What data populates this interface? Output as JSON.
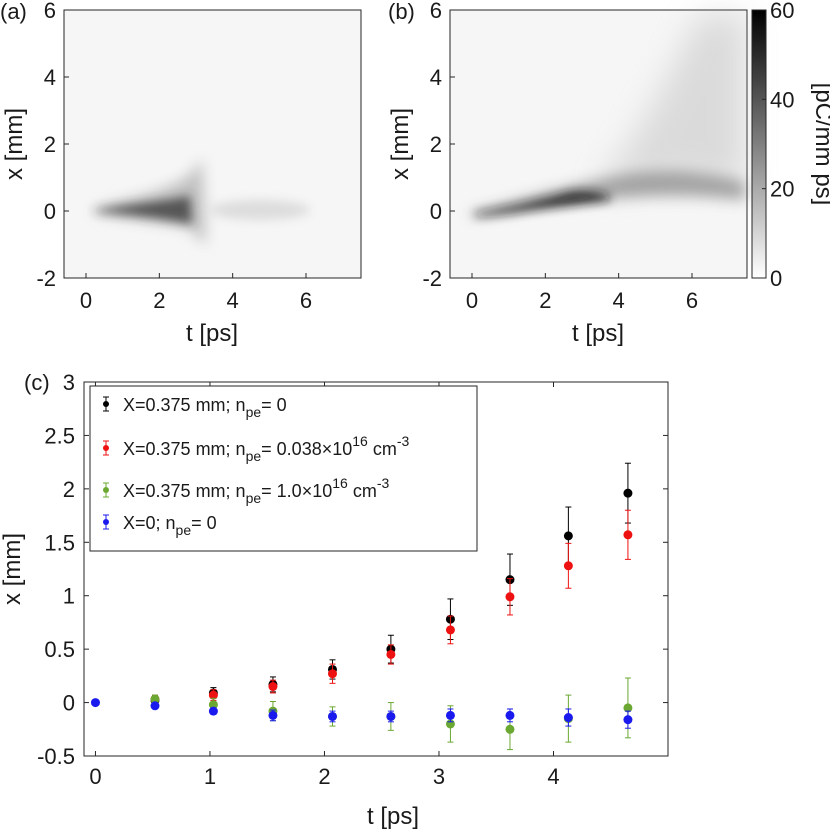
{
  "colors": {
    "black_series": "#000000",
    "red_series": "#ee1111",
    "green_series": "#6aa832",
    "blue_series": "#1a1aee",
    "axis": "#262626",
    "colormap_low": "#ffffff",
    "colormap_high": "#000000"
  },
  "chart_data": [
    {
      "type": "heatmap",
      "panel_label": "(a)",
      "xlabel": "t [ps]",
      "ylabel": "x [mm]",
      "xlim": [
        -0.6,
        7.5
      ],
      "ylim": [
        -2,
        6
      ],
      "xticks": [
        0,
        2,
        4,
        6
      ],
      "yticks": [
        -2,
        0,
        2,
        4,
        6
      ],
      "description_shape": "beam centred at x=0, narrow from t=0.5 ps, widening to ~±1.5 mm near t=3 ps, fading after",
      "centroid": [
        {
          "t": 0.5,
          "x": 0.0
        },
        {
          "t": 1.5,
          "x": 0.05
        },
        {
          "t": 2.5,
          "x": 0.05
        },
        {
          "t": 3.0,
          "x": 0.0
        },
        {
          "t": 4.0,
          "x": 0.0
        },
        {
          "t": 6.0,
          "x": 0.0
        }
      ]
    },
    {
      "type": "heatmap",
      "panel_label": "(b)",
      "xlabel": "t [ps]",
      "ylabel": "x [mm]",
      "xlim": [
        -0.6,
        7.5
      ],
      "ylim": [
        -2,
        6
      ],
      "xticks": [
        0,
        2,
        4,
        6
      ],
      "yticks": [
        -2,
        0,
        2,
        4,
        6
      ],
      "colorbar": {
        "label": "[pC/mm ps]",
        "range": [
          0,
          60
        ],
        "ticks": [
          0,
          20,
          40,
          60
        ]
      },
      "centroid": [
        {
          "t": 0.0,
          "x": -0.1
        },
        {
          "t": 1.0,
          "x": 0.0
        },
        {
          "t": 2.0,
          "x": 0.2
        },
        {
          "t": 3.0,
          "x": 0.45
        },
        {
          "t": 4.0,
          "x": 0.8
        },
        {
          "t": 5.0,
          "x": 1.0
        },
        {
          "t": 6.0,
          "x": 0.95
        },
        {
          "t": 7.0,
          "x": 0.8
        }
      ]
    },
    {
      "type": "scatter",
      "panel_label": "(c)",
      "xlabel": "t [ps]",
      "ylabel": "x [mm]",
      "xlim": [
        -0.1,
        5.0
      ],
      "ylim": [
        -0.5,
        3.0
      ],
      "xticks": [
        0,
        1,
        2,
        3,
        4
      ],
      "yticks": [
        -0.5,
        0,
        0.5,
        1,
        1.5,
        2,
        2.5,
        3
      ],
      "ytick_labels": [
        "-0.5",
        "0",
        "0.5",
        "1",
        "1.5",
        "2",
        "2.5",
        "3"
      ],
      "legend_position": "top-left",
      "legend": [
        {
          "text": "X=0.375 mm; n",
          "sub": "pe",
          "tail": "= 0",
          "sup": ""
        },
        {
          "text": "X=0.375 mm; n",
          "sub": "pe",
          "tail": "= 0.038×10",
          "sup": "16",
          "unit": " cm",
          "unit_sup": "-3"
        },
        {
          "text": "X=0.375 mm; n",
          "sub": "pe",
          "tail": "= 1.0×10",
          "sup": "16",
          "unit": " cm",
          "unit_sup": "-3"
        },
        {
          "text": "X=0; n",
          "sub": "pe",
          "tail": "= 0",
          "sup": ""
        }
      ],
      "series": [
        {
          "color_key": "black_series",
          "points": [
            {
              "x": 0.52,
              "y": 0.02,
              "err": 0.04
            },
            {
              "x": 1.03,
              "y": 0.09,
              "err": 0.05
            },
            {
              "x": 1.55,
              "y": 0.17,
              "err": 0.07
            },
            {
              "x": 2.07,
              "y": 0.31,
              "err": 0.09
            },
            {
              "x": 2.58,
              "y": 0.5,
              "err": 0.13
            },
            {
              "x": 3.1,
              "y": 0.78,
              "err": 0.19
            },
            {
              "x": 3.62,
              "y": 1.15,
              "err": 0.24
            },
            {
              "x": 4.13,
              "y": 1.56,
              "err": 0.27
            },
            {
              "x": 4.65,
              "y": 1.96,
              "err": 0.28
            }
          ]
        },
        {
          "color_key": "red_series",
          "points": [
            {
              "x": 0.52,
              "y": 0.03,
              "err": 0.04
            },
            {
              "x": 1.03,
              "y": 0.07,
              "err": 0.05
            },
            {
              "x": 1.55,
              "y": 0.15,
              "err": 0.06
            },
            {
              "x": 2.07,
              "y": 0.27,
              "err": 0.09
            },
            {
              "x": 2.58,
              "y": 0.45,
              "err": 0.09
            },
            {
              "x": 3.1,
              "y": 0.68,
              "err": 0.13
            },
            {
              "x": 3.62,
              "y": 0.99,
              "err": 0.17
            },
            {
              "x": 4.13,
              "y": 1.28,
              "err": 0.21
            },
            {
              "x": 4.65,
              "y": 1.57,
              "err": 0.23
            }
          ]
        },
        {
          "color_key": "green_series",
          "points": [
            {
              "x": 0.52,
              "y": 0.03,
              "err": 0.04
            },
            {
              "x": 1.03,
              "y": -0.02,
              "err": 0.06
            },
            {
              "x": 1.55,
              "y": -0.08,
              "err": 0.09
            },
            {
              "x": 2.07,
              "y": -0.13,
              "err": 0.09
            },
            {
              "x": 2.58,
              "y": -0.13,
              "err": 0.13
            },
            {
              "x": 3.1,
              "y": -0.2,
              "err": 0.17
            },
            {
              "x": 3.62,
              "y": -0.25,
              "err": 0.19
            },
            {
              "x": 4.13,
              "y": -0.15,
              "err": 0.22
            },
            {
              "x": 4.65,
              "y": -0.05,
              "err": 0.28
            }
          ]
        },
        {
          "color_key": "blue_series",
          "points": [
            {
              "x": 0.0,
              "y": 0.0,
              "err": 0.01
            },
            {
              "x": 0.52,
              "y": -0.03,
              "err": 0.02
            },
            {
              "x": 1.03,
              "y": -0.08,
              "err": 0.03
            },
            {
              "x": 1.55,
              "y": -0.12,
              "err": 0.05
            },
            {
              "x": 2.07,
              "y": -0.13,
              "err": 0.05
            },
            {
              "x": 2.58,
              "y": -0.13,
              "err": 0.05
            },
            {
              "x": 3.1,
              "y": -0.12,
              "err": 0.06
            },
            {
              "x": 3.62,
              "y": -0.12,
              "err": 0.06
            },
            {
              "x": 4.13,
              "y": -0.14,
              "err": 0.08
            },
            {
              "x": 4.65,
              "y": -0.16,
              "err": 0.08
            }
          ]
        }
      ]
    }
  ]
}
